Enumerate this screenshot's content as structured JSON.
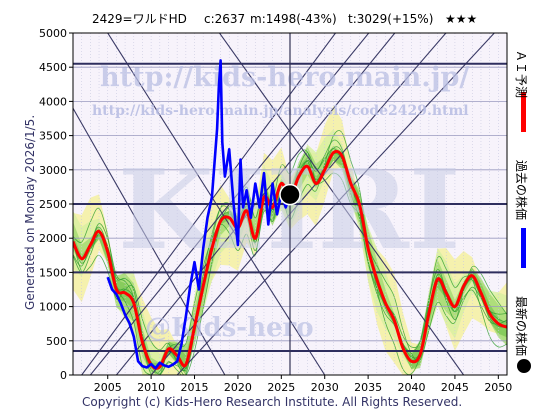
{
  "header": {
    "code_name": "2429=ワルドHD",
    "current": "c:2637",
    "minimum": "m:1498(-43%)",
    "target": "t:3029(+15%)",
    "stars": "★★★"
  },
  "generated_label": "Generated on Monday 2026/1/5.",
  "copyright": "Copyright (c) Kids-Hero Research Institute. All Rights Reserved.",
  "watermarks": {
    "url_main": "http://kids-hero.main.jp/",
    "url_analysis": "http://kids-hero.main.jp/analysis/code2429.html",
    "big": "KHRI",
    "handle": "@Kids-hero"
  },
  "legend": {
    "ai_label": "ＡＩ予測",
    "past_label": "過去の株価",
    "latest_label": "最新の株価",
    "ai_color": "#ff0000",
    "past_color": "#0000ff",
    "latest_color": "#000000"
  },
  "chart_data": {
    "type": "line",
    "xlim": [
      2001,
      2051
    ],
    "ylim": [
      0,
      5000
    ],
    "x_ticks": [
      2005,
      2010,
      2015,
      2020,
      2025,
      2030,
      2035,
      2040,
      2045,
      2050
    ],
    "y_ticks": [
      0,
      500,
      1000,
      1500,
      2000,
      2500,
      3000,
      3500,
      4000,
      4500,
      5000
    ],
    "horizontal_levels": [
      350,
      1500,
      2500,
      4550
    ],
    "vertical_marker_x": 2026,
    "latest_point": {
      "x": 2026.0,
      "y": 2637
    },
    "past_price": {
      "x": [
        2005.0,
        2005.5,
        2006.0,
        2006.5,
        2007.0,
        2007.5,
        2008.0,
        2008.5,
        2009.0,
        2009.5,
        2010.0,
        2010.5,
        2011.0,
        2011.5,
        2012.0,
        2012.5,
        2013.0,
        2013.5,
        2014.0,
        2014.5,
        2015.0,
        2015.5,
        2016.0,
        2016.5,
        2017.0,
        2017.3,
        2017.6,
        2017.8,
        2018.0,
        2018.2,
        2018.5,
        2019.0,
        2019.5,
        2020.0,
        2020.3,
        2020.6,
        2021.0,
        2021.5,
        2022.0,
        2022.5,
        2023.0,
        2023.5,
        2024.0,
        2024.5,
        2025.0,
        2025.5,
        2026.0
      ],
      "y": [
        1430,
        1250,
        1180,
        1050,
        880,
        760,
        560,
        200,
        130,
        110,
        160,
        100,
        180,
        140,
        120,
        150,
        200,
        450,
        850,
        1300,
        1650,
        1250,
        1850,
        2300,
        2600,
        3100,
        3600,
        4200,
        4600,
        3400,
        2900,
        3300,
        2500,
        1900,
        3150,
        2450,
        2700,
        2300,
        2800,
        2450,
        2950,
        2200,
        2800,
        2350,
        2650,
        2450,
        2637
      ]
    },
    "ai_forecast": {
      "x": [
        2001,
        2002,
        2003,
        2004,
        2005,
        2006,
        2007,
        2008,
        2009,
        2010,
        2011,
        2012,
        2013,
        2014,
        2015,
        2016,
        2017,
        2018,
        2019,
        2020,
        2021,
        2022,
        2023,
        2024,
        2025,
        2026,
        2027,
        2028,
        2029,
        2030,
        2031,
        2032,
        2033,
        2034,
        2035,
        2036,
        2037,
        2038,
        2039,
        2040,
        2041,
        2042,
        2043,
        2044,
        2045,
        2046,
        2047,
        2048,
        2049,
        2050,
        2051
      ],
      "y": [
        1950,
        1700,
        1900,
        2100,
        1800,
        1250,
        1200,
        1050,
        480,
        150,
        120,
        380,
        280,
        150,
        700,
        1300,
        1850,
        2250,
        2300,
        2150,
        2400,
        2000,
        2600,
        2450,
        2800,
        2600,
        2900,
        3050,
        2800,
        3000,
        3250,
        3200,
        2800,
        2500,
        1850,
        1400,
        1050,
        800,
        400,
        200,
        300,
        900,
        1400,
        1200,
        1000,
        1300,
        1450,
        1200,
        900,
        750,
        700
      ]
    }
  }
}
